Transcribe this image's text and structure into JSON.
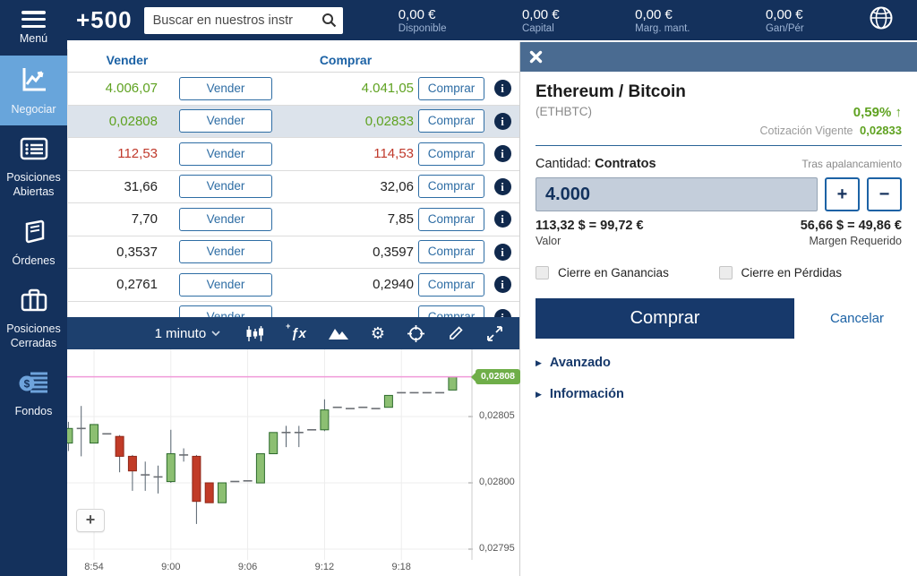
{
  "topbar": {
    "logo": "+500",
    "search_placeholder": "Buscar en nuestros instr",
    "stats": [
      {
        "value": "0,00 €",
        "label": "Disponible"
      },
      {
        "value": "0,00 €",
        "label": "Capital"
      },
      {
        "value": "0,00 €",
        "label": "Marg. mant."
      },
      {
        "value": "0,00 €",
        "label": "Gan/Pér"
      }
    ]
  },
  "sidebar": {
    "items": [
      {
        "label": "Menú"
      },
      {
        "label": "Negociar"
      },
      {
        "label": "Posiciones Abiertas"
      },
      {
        "label": "Órdenes"
      },
      {
        "label": "Posiciones Cerradas"
      },
      {
        "label": "Fondos"
      }
    ]
  },
  "quotes": {
    "sell_header": "Vender",
    "buy_header": "Comprar",
    "sell_button": "Vender",
    "buy_button": "Comprar",
    "rows": [
      {
        "sell": "4.006,07",
        "buy": "4.041,05",
        "trend": "up",
        "selected": false
      },
      {
        "sell": "0,02808",
        "buy": "0,02833",
        "trend": "up",
        "selected": true
      },
      {
        "sell": "112,53",
        "buy": "114,53",
        "trend": "down",
        "selected": false
      },
      {
        "sell": "31,66",
        "buy": "32,06",
        "trend": "none",
        "selected": false
      },
      {
        "sell": "7,70",
        "buy": "7,85",
        "trend": "none",
        "selected": false
      },
      {
        "sell": "0,3537",
        "buy": "0,3597",
        "trend": "none",
        "selected": false
      },
      {
        "sell": "0,2761",
        "buy": "0,2940",
        "trend": "none",
        "selected": false
      },
      {
        "sell": "",
        "buy": "",
        "trend": "none",
        "selected": false
      }
    ]
  },
  "chart_toolbar": {
    "timeframe": "1 minuto"
  },
  "chart_data": {
    "type": "candlestick",
    "instrument": "ETHBTC",
    "interval": "1 minuto",
    "x_ticks": [
      "8:54",
      "9:00",
      "9:06",
      "9:12",
      "9:18"
    ],
    "y_ticks": [
      {
        "label": "0,02805",
        "value": 0.02805
      },
      {
        "label": "0,02800",
        "value": 0.028
      },
      {
        "label": "0,02795",
        "value": 0.02795
      }
    ],
    "current_price": {
      "label": "0,02808",
      "value": 0.02808
    },
    "y_range": [
      0.0279419,
      0.0281007
    ],
    "candles": [
      {
        "t": "8:52",
        "o": 0.02803,
        "h": 0.028046,
        "l": 0.028024,
        "c": 0.028041
      },
      {
        "t": "8:53",
        "o": 0.02804,
        "h": 0.028058,
        "l": 0.02802,
        "c": 0.028042
      },
      {
        "t": "8:54",
        "o": 0.02803,
        "h": 0.028046,
        "l": 0.028028,
        "c": 0.028044
      },
      {
        "t": "8:55",
        "o": 0.028037,
        "h": 0.028041,
        "l": 0.028033,
        "c": 0.028037
      },
      {
        "t": "8:56",
        "o": 0.028035,
        "h": 0.028036,
        "l": 0.028008,
        "c": 0.02802
      },
      {
        "t": "8:57",
        "o": 0.02802,
        "h": 0.028021,
        "l": 0.027994,
        "c": 0.028009
      },
      {
        "t": "8:58",
        "o": 0.028007,
        "h": 0.028016,
        "l": 0.027994,
        "c": 0.028005
      },
      {
        "t": "8:59",
        "o": 0.028005,
        "h": 0.028013,
        "l": 0.027992,
        "c": 0.028004
      },
      {
        "t": "9:00",
        "o": 0.028001,
        "h": 0.02804,
        "l": 0.028,
        "c": 0.028022
      },
      {
        "t": "9:01",
        "o": 0.028021,
        "h": 0.028026,
        "l": 0.028016,
        "c": 0.028021
      },
      {
        "t": "9:02",
        "o": 0.02802,
        "h": 0.028021,
        "l": 0.027969,
        "c": 0.027986
      },
      {
        "t": "9:03",
        "o": 0.028,
        "h": 0.028001,
        "l": 0.027982,
        "c": 0.027985
      },
      {
        "t": "9:04",
        "o": 0.027985,
        "h": 0.028002,
        "l": 0.027984,
        "c": 0.028
      },
      {
        "t": "9:05",
        "o": 0.028001,
        "h": 0.028005,
        "l": 0.027997,
        "c": 0.028001
      },
      {
        "t": "9:06",
        "o": 0.028001,
        "h": 0.028005,
        "l": 0.027998,
        "c": 0.028002
      },
      {
        "t": "9:07",
        "o": 0.028,
        "h": 0.028024,
        "l": 0.027999,
        "c": 0.028022
      },
      {
        "t": "9:08",
        "o": 0.028022,
        "h": 0.02804,
        "l": 0.028021,
        "c": 0.028038
      },
      {
        "t": "9:09",
        "o": 0.028038,
        "h": 0.028043,
        "l": 0.028027,
        "c": 0.028038
      },
      {
        "t": "9:10",
        "o": 0.028038,
        "h": 0.028043,
        "l": 0.028027,
        "c": 0.028038
      },
      {
        "t": "9:11",
        "o": 0.02804,
        "h": 0.028043,
        "l": 0.028036,
        "c": 0.02804
      },
      {
        "t": "9:12",
        "o": 0.02804,
        "h": 0.028063,
        "l": 0.028039,
        "c": 0.028055
      },
      {
        "t": "9:13",
        "o": 0.028057,
        "h": 0.02806,
        "l": 0.028053,
        "c": 0.028057
      },
      {
        "t": "9:14",
        "o": 0.028056,
        "h": 0.028059,
        "l": 0.028053,
        "c": 0.028056
      },
      {
        "t": "9:15",
        "o": 0.028057,
        "h": 0.02806,
        "l": 0.028054,
        "c": 0.028057
      },
      {
        "t": "9:16",
        "o": 0.028056,
        "h": 0.02806,
        "l": 0.028052,
        "c": 0.028056
      },
      {
        "t": "9:17",
        "o": 0.028057,
        "h": 0.028069,
        "l": 0.028055,
        "c": 0.028066
      },
      {
        "t": "9:18",
        "o": 0.028068,
        "h": 0.028072,
        "l": 0.028064,
        "c": 0.028068
      },
      {
        "t": "9:19",
        "o": 0.028068,
        "h": 0.028071,
        "l": 0.028065,
        "c": 0.028068
      },
      {
        "t": "9:20",
        "o": 0.028068,
        "h": 0.028072,
        "l": 0.028064,
        "c": 0.028068
      },
      {
        "t": "9:21",
        "o": 0.028068,
        "h": 0.028071,
        "l": 0.028065,
        "c": 0.028068
      },
      {
        "t": "9:22",
        "o": 0.02807,
        "h": 0.028083,
        "l": 0.028067,
        "c": 0.02808
      }
    ]
  },
  "order_panel": {
    "instrument": "Ethereum / Bitcoin",
    "symbol": "(ETHBTC)",
    "change_pct": "0,59%",
    "quote_label": "Cotización Vigente",
    "quote_value": "0,02833",
    "quantity_label": "Cantidad:",
    "quantity_unit": "Contratos",
    "leverage_note": "Tras apalancamiento",
    "quantity_value": "4.000",
    "value_amount": "113,32 $ = 99,72 €",
    "value_label": "Valor",
    "margin_amount": "56,66 $ = 49,86 €",
    "margin_label": "Margen Requerido",
    "close_profit_label": "Cierre en Ganancias",
    "close_loss_label": "Cierre en Pérdidas",
    "buy_button": "Comprar",
    "cancel_button": "Cancelar",
    "advanced_label": "Avanzado",
    "info_label": "Información"
  },
  "icons": {
    "up_arrow": "↑",
    "gear": "⚙",
    "fx": "ƒx",
    "fx_plus": "+",
    "triangle": "▶",
    "plus": "+",
    "minus": "−"
  },
  "colors": {
    "navy": "#14315c",
    "toolbar_navy": "#1d406e",
    "active_blue": "#68a5db",
    "link_blue": "#1c62a5",
    "positive": "#5fa221",
    "negative": "#c0392b",
    "price_line": "#f09ad9",
    "price_tag": "#6fae49",
    "candle_up": "#8cbf72",
    "candle_up_border": "#2e6b2e",
    "candle_down": "#c13b27",
    "candle_down_border": "#8e2718",
    "buy_button_navy": "#17396b"
  }
}
